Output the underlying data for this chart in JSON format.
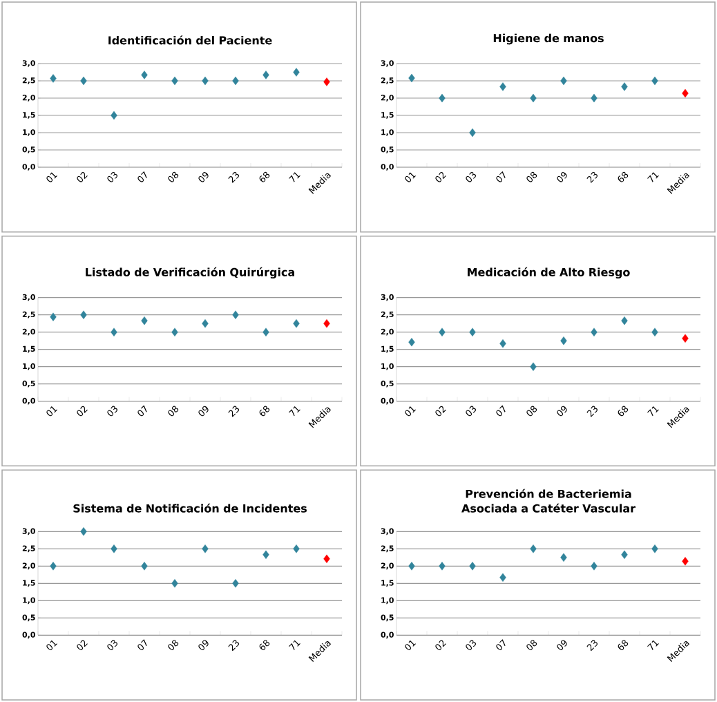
{
  "chart_data": [
    {
      "type": "scatter",
      "title": "Identificación del Paciente",
      "categories": [
        "01",
        "02",
        "03",
        "07",
        "08",
        "09",
        "23",
        "68",
        "71",
        "Media"
      ],
      "values": [
        2.57,
        2.5,
        1.5,
        2.67,
        2.5,
        2.5,
        2.5,
        2.67,
        2.75,
        2.47
      ],
      "colors": [
        "#31849b",
        "#31849b",
        "#31849b",
        "#31849b",
        "#31849b",
        "#31849b",
        "#31849b",
        "#31849b",
        "#31849b",
        "#ff0000"
      ],
      "ylim": [
        0,
        3
      ],
      "yticks": [
        {
          "value": 0,
          "label": "0,0"
        },
        {
          "value": 0.5,
          "label": "0,5"
        },
        {
          "value": 1,
          "label": "1,0"
        },
        {
          "value": 1.5,
          "label": "1,5"
        },
        {
          "value": 2,
          "label": "2,0"
        },
        {
          "value": 2.5,
          "label": "2,5"
        },
        {
          "value": 3,
          "label": "3,0"
        }
      ],
      "grid": "y",
      "marker": "diamond"
    },
    {
      "type": "scatter",
      "title": "Higiene de manos",
      "categories": [
        "01",
        "02",
        "03",
        "07",
        "08",
        "09",
        "23",
        "68",
        "71",
        "Media"
      ],
      "values": [
        2.58,
        2.0,
        1.0,
        2.33,
        2.0,
        2.5,
        2.0,
        2.33,
        2.5,
        2.14
      ],
      "colors": [
        "#31849b",
        "#31849b",
        "#31849b",
        "#31849b",
        "#31849b",
        "#31849b",
        "#31849b",
        "#31849b",
        "#31849b",
        "#ff0000"
      ],
      "ylim": [
        0,
        3
      ],
      "yticks": [
        {
          "value": 0,
          "label": "0,0"
        },
        {
          "value": 0.5,
          "label": "0,5"
        },
        {
          "value": 1,
          "label": "1,0"
        },
        {
          "value": 1.5,
          "label": "1,5"
        },
        {
          "value": 2,
          "label": "2,0"
        },
        {
          "value": 2.5,
          "label": "2,5"
        },
        {
          "value": 3,
          "label": "3,0"
        }
      ],
      "grid": "y",
      "marker": "diamond"
    },
    {
      "type": "scatter",
      "title": "Listado de Verificación Quirúrgica",
      "categories": [
        "01",
        "02",
        "03",
        "07",
        "08",
        "09",
        "23",
        "68",
        "71",
        "Media"
      ],
      "values": [
        2.44,
        2.5,
        2.0,
        2.33,
        2.0,
        2.25,
        2.5,
        2.0,
        2.25,
        2.25
      ],
      "colors": [
        "#31849b",
        "#31849b",
        "#31849b",
        "#31849b",
        "#31849b",
        "#31849b",
        "#31849b",
        "#31849b",
        "#31849b",
        "#ff0000"
      ],
      "ylim": [
        0,
        3
      ],
      "yticks": [
        {
          "value": 0,
          "label": "0,0"
        },
        {
          "value": 0.5,
          "label": "0,5"
        },
        {
          "value": 1,
          "label": "1,0"
        },
        {
          "value": 1.5,
          "label": "1,5"
        },
        {
          "value": 2,
          "label": "2,0"
        },
        {
          "value": 2.5,
          "label": "2,5"
        },
        {
          "value": 3,
          "label": "3,0"
        }
      ],
      "grid": "y",
      "marker": "diamond"
    },
    {
      "type": "scatter",
      "title": "Medicación de Alto Riesgo",
      "categories": [
        "01",
        "02",
        "03",
        "07",
        "08",
        "09",
        "23",
        "68",
        "71",
        "Media"
      ],
      "values": [
        1.71,
        2.0,
        2.0,
        1.67,
        1.0,
        1.75,
        2.0,
        2.33,
        2.0,
        1.82
      ],
      "colors": [
        "#31849b",
        "#31849b",
        "#31849b",
        "#31849b",
        "#31849b",
        "#31849b",
        "#31849b",
        "#31849b",
        "#31849b",
        "#ff0000"
      ],
      "ylim": [
        0,
        3
      ],
      "yticks": [
        {
          "value": 0,
          "label": "0,0"
        },
        {
          "value": 0.5,
          "label": "0,5"
        },
        {
          "value": 1,
          "label": "1,0"
        },
        {
          "value": 1.5,
          "label": "1,5"
        },
        {
          "value": 2,
          "label": "2,0"
        },
        {
          "value": 2.5,
          "label": "2,5"
        },
        {
          "value": 3,
          "label": "3,0"
        }
      ],
      "grid": "y",
      "marker": "diamond"
    },
    {
      "type": "scatter",
      "title": "Sistema de Notificación de Incidentes",
      "categories": [
        "01",
        "02",
        "03",
        "07",
        "08",
        "09",
        "23",
        "68",
        "71",
        "Media"
      ],
      "values": [
        2.0,
        3.0,
        2.5,
        2.0,
        1.5,
        2.5,
        1.5,
        2.33,
        2.5,
        2.21
      ],
      "colors": [
        "#31849b",
        "#31849b",
        "#31849b",
        "#31849b",
        "#31849b",
        "#31849b",
        "#31849b",
        "#31849b",
        "#31849b",
        "#ff0000"
      ],
      "ylim": [
        0,
        3
      ],
      "yticks": [
        {
          "value": 0,
          "label": "0,0"
        },
        {
          "value": 0.5,
          "label": "0,5"
        },
        {
          "value": 1,
          "label": "1,0"
        },
        {
          "value": 1.5,
          "label": "1,5"
        },
        {
          "value": 2,
          "label": "2,0"
        },
        {
          "value": 2.5,
          "label": "2,5"
        },
        {
          "value": 3,
          "label": "3,0"
        }
      ],
      "grid": "y",
      "marker": "diamond"
    },
    {
      "type": "scatter",
      "title": "Prevención de Bacteriemia Asociada a Catéter Vascular",
      "categories": [
        "01",
        "02",
        "03",
        "07",
        "08",
        "09",
        "23",
        "68",
        "71",
        "Media"
      ],
      "values": [
        2.0,
        2.0,
        2.0,
        1.67,
        2.5,
        2.25,
        2.0,
        2.33,
        2.5,
        2.14
      ],
      "colors": [
        "#31849b",
        "#31849b",
        "#31849b",
        "#31849b",
        "#31849b",
        "#31849b",
        "#31849b",
        "#31849b",
        "#31849b",
        "#ff0000"
      ],
      "ylim": [
        0,
        3
      ],
      "yticks": [
        {
          "value": 0,
          "label": "0,0"
        },
        {
          "value": 0.5,
          "label": "0,5"
        },
        {
          "value": 1,
          "label": "1,0"
        },
        {
          "value": 1.5,
          "label": "1,5"
        },
        {
          "value": 2,
          "label": "2,0"
        },
        {
          "value": 2.5,
          "label": "2,5"
        },
        {
          "value": 3,
          "label": "3,0"
        }
      ],
      "grid": "y",
      "marker": "diamond"
    }
  ]
}
